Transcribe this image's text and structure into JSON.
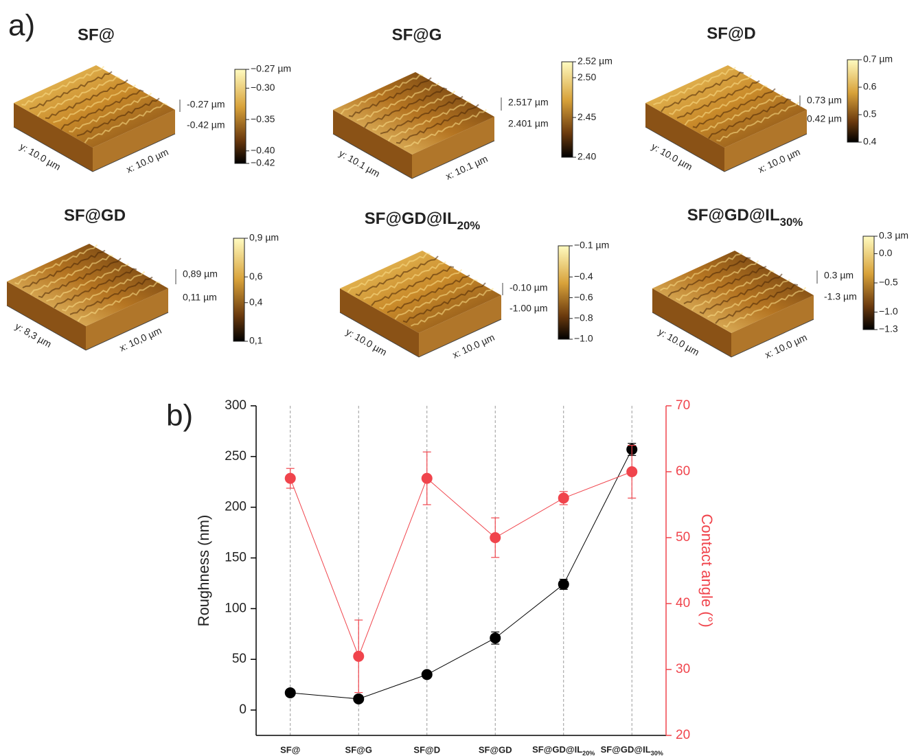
{
  "panel_labels": {
    "a": "a)",
    "b": "b)"
  },
  "afm_images": [
    {
      "title": "SF@",
      "x_label": "x: 10.0 µm",
      "y_label": "y: 10.0 µm",
      "z_max": "-0.27 µm",
      "z_min": "-0.42 µm",
      "colorbar": {
        "range": [
          -0.42,
          -0.27
        ],
        "ticks": [
          {
            "value": -0.27,
            "label": "−0.27 µm"
          },
          {
            "value": -0.3,
            "label": "−0.30"
          },
          {
            "value": -0.35,
            "label": "−0.35"
          },
          {
            "value": -0.4,
            "label": "−0.40"
          },
          {
            "value": -0.42,
            "label": "−0.42"
          }
        ]
      }
    },
    {
      "title": "SF@G",
      "x_label": "x: 10.1 µm",
      "y_label": "y: 10.1 µm",
      "z_max": "2.517 µm",
      "z_min": "2.401 µm",
      "colorbar": {
        "range": [
          2.4,
          2.52
        ],
        "ticks": [
          {
            "value": 2.52,
            "label": "2.52 µm"
          },
          {
            "value": 2.5,
            "label": "2.50"
          },
          2.45,
          {
            "value": 2.4,
            "label": "2.40"
          }
        ]
      }
    },
    {
      "title": "SF@D",
      "x_label": "x: 10.0 µm",
      "y_label": "y: 10.0 µm",
      "z_max": "0.73 µm",
      "z_min": "0.42 µm",
      "colorbar": {
        "range": [
          0.4,
          0.7
        ],
        "ticks": [
          {
            "value": 0.7,
            "label": "0.7 µm"
          },
          0.6,
          0.5,
          0.4
        ]
      }
    },
    {
      "title": "SF@GD",
      "x_label": "x: 10,0 µm",
      "y_label": "y: 8,3 µm",
      "z_max": "0,89 µm",
      "z_min": "0,11 µm",
      "colorbar": {
        "range": [
          0.1,
          0.9
        ],
        "ticks": [
          {
            "value": 0.9,
            "label": "0,9 µm"
          },
          {
            "value": 0.6,
            "label": "0,6"
          },
          {
            "value": 0.4,
            "label": "0,4"
          },
          {
            "value": 0.1,
            "label": "0,1"
          }
        ]
      }
    },
    {
      "title": "SF@GD@IL20%",
      "x_label": "x: 10.0 µm",
      "y_label": "y: 10.0 µm",
      "z_max": "-0.10 µm",
      "z_min": "-1.00 µm",
      "colorbar": {
        "range": [
          -1.0,
          -0.1
        ],
        "ticks": [
          {
            "value": -0.1,
            "label": "−0.1 µm"
          },
          {
            "value": -0.4,
            "label": "−0.4"
          },
          {
            "value": -0.6,
            "label": "−0.6"
          },
          {
            "value": -0.8,
            "label": "−0.8"
          },
          {
            "value": -1.0,
            "label": "−1.0"
          }
        ]
      }
    },
    {
      "title": "SF@GD@IL30%",
      "x_label": "x: 10.0 µm",
      "y_label": "y: 10.0 µm",
      "z_max": "0.3 µm",
      "z_min": "-1.3 µm",
      "colorbar": {
        "range": [
          -1.3,
          0.3
        ],
        "ticks": [
          {
            "value": 0.3,
            "label": "0.3 µm"
          },
          {
            "value": 0,
            "label": "0.0"
          },
          {
            "value": -0.5,
            "label": "−0.5"
          },
          {
            "value": -1.0,
            "label": "−1.0"
          },
          {
            "value": -1.3,
            "label": "−1.3"
          }
        ]
      }
    }
  ],
  "chart_data": {
    "type": "scatter",
    "categories": [
      "SF@",
      "SF@G",
      "SF@D",
      "SF@GD",
      "SF@GD@IL20%",
      "SF@GD@IL30%"
    ],
    "ylabel": "Roughness (nm)",
    "y2label": "Contact angle (°)",
    "ylim": [
      -25,
      300
    ],
    "yticks": [
      0,
      50,
      100,
      150,
      200,
      250,
      300
    ],
    "y2lim": [
      20,
      70
    ],
    "y2ticks": [
      20,
      30,
      40,
      50,
      60,
      70
    ],
    "grid": true,
    "series": [
      {
        "color": "#000000",
        "values": [
          17,
          11,
          35,
          71,
          124,
          257
        ],
        "errors": [
          2,
          2,
          2,
          6,
          5,
          6
        ]
      },
      {
        "color": "#f0444c",
        "axis": "y2",
        "values": [
          59,
          32,
          59,
          50,
          56,
          60
        ],
        "errors": [
          1.5,
          5.5,
          4,
          3,
          1,
          4
        ]
      }
    ]
  }
}
